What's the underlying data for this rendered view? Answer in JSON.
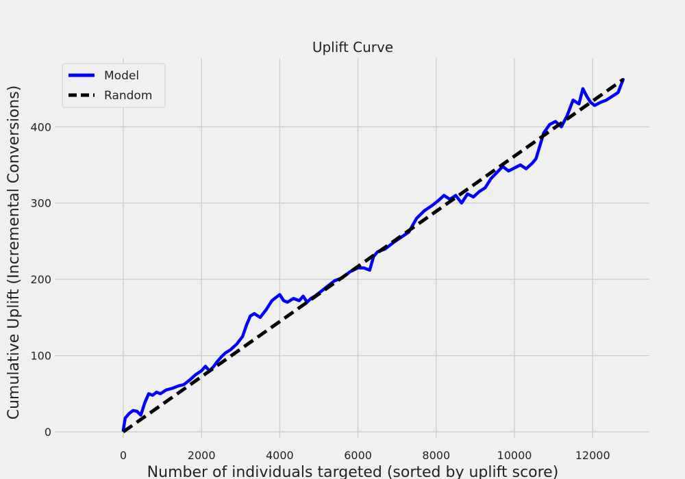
{
  "chart_data": {
    "type": "line",
    "title": "Uplift Curve",
    "xlabel": "Number of individuals targeted (sorted by uplift score)",
    "ylabel": "Cumulative Uplift (Incremental Conversions)",
    "xlim": [
      -1750,
      13450
    ],
    "ylim": [
      -8,
      490
    ],
    "xticks": [
      0,
      2000,
      4000,
      6000,
      8000,
      10000,
      12000
    ],
    "yticks": [
      0,
      100,
      200,
      300,
      400
    ],
    "grid": true,
    "legend_position": "top-left",
    "series": [
      {
        "name": "Model",
        "color": "#0000ff",
        "style": "solid",
        "x": [
          0,
          50,
          150,
          250,
          350,
          450,
          550,
          650,
          750,
          850,
          950,
          1100,
          1250,
          1400,
          1550,
          1700,
          1850,
          2000,
          2100,
          2200,
          2300,
          2400,
          2500,
          2600,
          2750,
          2900,
          3050,
          3150,
          3250,
          3350,
          3500,
          3650,
          3800,
          3900,
          4000,
          4100,
          4200,
          4350,
          4500,
          4600,
          4700,
          4800,
          4900,
          5000,
          5200,
          5400,
          5600,
          5800,
          6000,
          6150,
          6300,
          6400,
          6500,
          6700,
          6900,
          7100,
          7300,
          7500,
          7700,
          7900,
          8050,
          8200,
          8350,
          8500,
          8650,
          8800,
          8950,
          9100,
          9250,
          9400,
          9550,
          9700,
          9850,
          10000,
          10150,
          10300,
          10450,
          10550,
          10650,
          10750,
          10900,
          11050,
          11200,
          11350,
          11500,
          11650,
          11750,
          11850,
          11950,
          12050,
          12200,
          12350,
          12500,
          12650,
          12780
        ],
        "values": [
          2,
          18,
          24,
          28,
          27,
          22,
          38,
          50,
          48,
          52,
          50,
          55,
          57,
          60,
          62,
          68,
          75,
          80,
          86,
          80,
          85,
          92,
          98,
          103,
          108,
          115,
          125,
          140,
          152,
          155,
          150,
          160,
          172,
          176,
          180,
          172,
          170,
          175,
          172,
          178,
          170,
          175,
          178,
          182,
          190,
          198,
          202,
          210,
          215,
          215,
          212,
          230,
          236,
          240,
          248,
          255,
          262,
          280,
          290,
          297,
          303,
          310,
          305,
          310,
          300,
          312,
          308,
          315,
          320,
          332,
          340,
          348,
          342,
          346,
          350,
          345,
          352,
          358,
          375,
          392,
          403,
          407,
          400,
          415,
          435,
          430,
          450,
          440,
          432,
          428,
          432,
          435,
          440,
          445,
          462
        ]
      },
      {
        "name": "Random",
        "color": "#000000",
        "style": "dashed",
        "x": [
          0,
          12780
        ],
        "values": [
          0,
          462
        ]
      }
    ]
  }
}
